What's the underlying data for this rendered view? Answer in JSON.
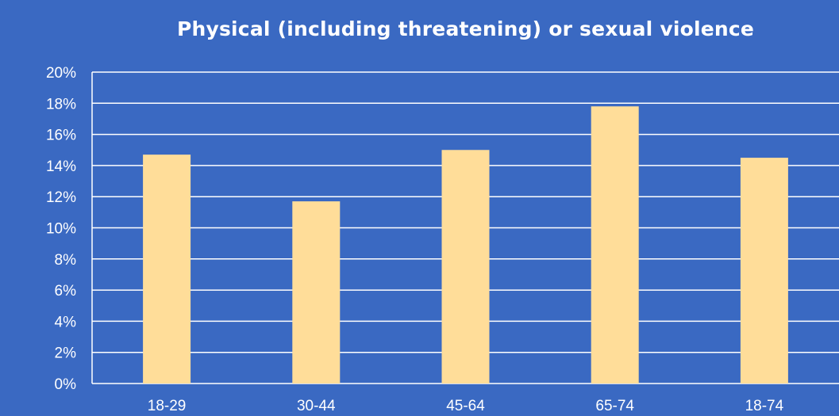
{
  "chart_data": {
    "type": "bar",
    "title": "Physical (including threatening) or sexual violence",
    "categories": [
      "18-29",
      "30-44",
      "45-64",
      "65-74",
      "18-74"
    ],
    "values": [
      14.7,
      11.7,
      15.0,
      17.8,
      14.5
    ],
    "value_unit": "%",
    "xlabel": "",
    "ylabel": "",
    "ylim": [
      0,
      20
    ],
    "yticks": [
      0,
      2,
      4,
      6,
      8,
      10,
      12,
      14,
      16,
      18,
      20
    ],
    "ytick_labels": [
      "0%",
      "2%",
      "4%",
      "6%",
      "8%",
      "10%",
      "12%",
      "14%",
      "16%",
      "18%",
      "20%"
    ],
    "grid": true,
    "legend": "none",
    "colors": {
      "background": "#3a69c2",
      "bar": "#ffdd99",
      "grid": "#ffffff",
      "text": "#ffffff"
    }
  }
}
